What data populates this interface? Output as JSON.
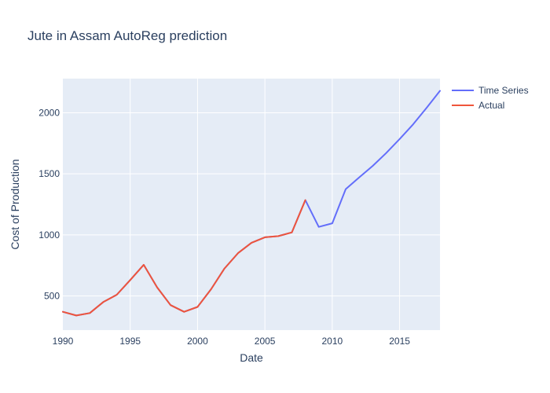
{
  "chart_data": {
    "type": "line",
    "title": "Jute in Assam AutoReg prediction",
    "xlabel": "Date",
    "ylabel": "Cost of Production",
    "xlim": [
      1990,
      2018
    ],
    "ylim": [
      220,
      2280
    ],
    "x_ticks": [
      "1990",
      "1995",
      "2000",
      "2005",
      "2010",
      "2015"
    ],
    "y_ticks": [
      "500",
      "1000",
      "1500",
      "2000"
    ],
    "grid": true,
    "legend_position": "top-right",
    "series": [
      {
        "name": "Time Series",
        "color": "#636efa",
        "x": [
          1990,
          1991,
          1992,
          1993,
          1994,
          1995,
          1996,
          1997,
          1998,
          1999,
          2000,
          2001,
          2002,
          2003,
          2004,
          2005,
          2006,
          2007,
          2008,
          2009,
          2010,
          2011,
          2012,
          2013,
          2014,
          2015,
          2016,
          2017,
          2018
        ],
        "y": [
          370,
          340,
          360,
          450,
          510,
          630,
          755,
          570,
          425,
          370,
          410,
          555,
          725,
          850,
          935,
          980,
          990,
          1020,
          1285,
          1065,
          1095,
          1375,
          1470,
          1565,
          1670,
          1785,
          1905,
          2040,
          2180
        ]
      },
      {
        "name": "Actual",
        "color": "#ef553b",
        "x": [
          1990,
          1991,
          1992,
          1993,
          1994,
          1995,
          1996,
          1997,
          1998,
          1999,
          2000,
          2001,
          2002,
          2003,
          2004,
          2005,
          2006,
          2007,
          2008
        ],
        "y": [
          370,
          340,
          360,
          450,
          510,
          630,
          755,
          570,
          425,
          370,
          410,
          555,
          725,
          850,
          935,
          980,
          990,
          1020,
          1285
        ]
      }
    ]
  }
}
